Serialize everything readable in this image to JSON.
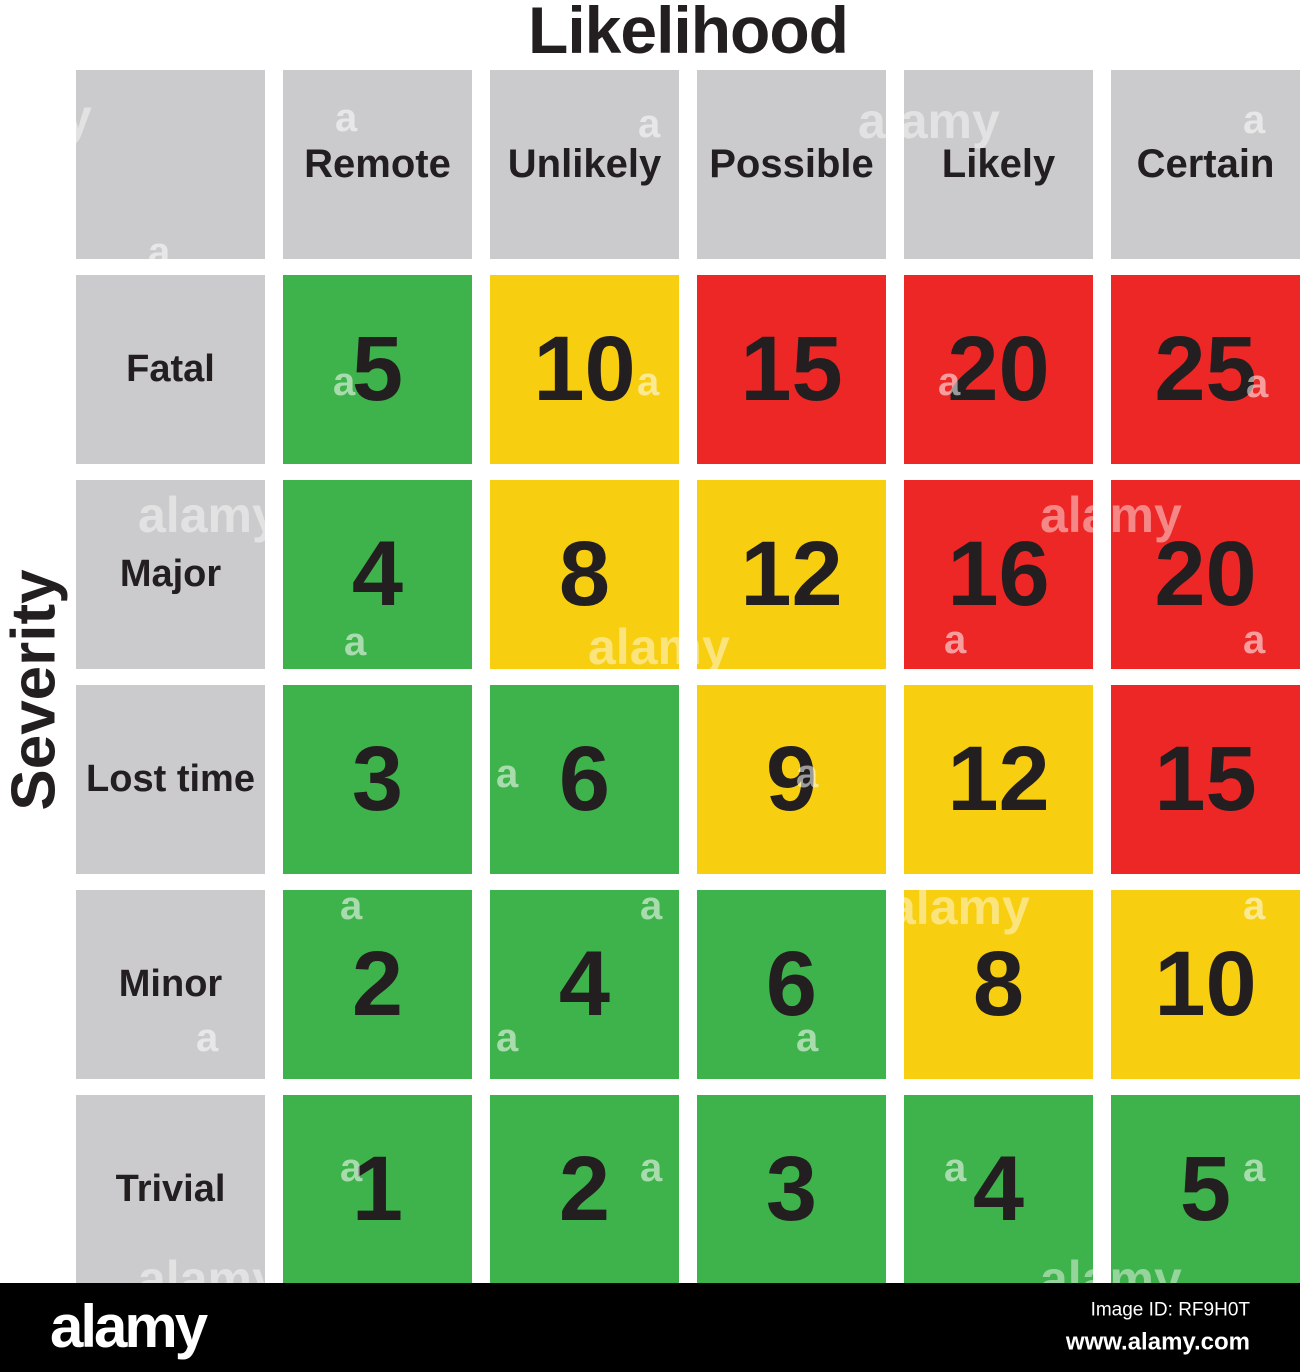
{
  "title": "Likelihood",
  "y_axis_label": "Severity",
  "matrix": {
    "columns": [
      "Remote",
      "Unlikely",
      "Possible",
      "Likely",
      "Certain"
    ],
    "rows": [
      {
        "label": "Fatal",
        "cells": [
          {
            "value": "5",
            "level": "green"
          },
          {
            "value": "10",
            "level": "yellow"
          },
          {
            "value": "15",
            "level": "red"
          },
          {
            "value": "20",
            "level": "red"
          },
          {
            "value": "25",
            "level": "red"
          }
        ]
      },
      {
        "label": "Major",
        "cells": [
          {
            "value": "4",
            "level": "green"
          },
          {
            "value": "8",
            "level": "yellow"
          },
          {
            "value": "12",
            "level": "yellow"
          },
          {
            "value": "16",
            "level": "red"
          },
          {
            "value": "20",
            "level": "red"
          }
        ]
      },
      {
        "label": "Lost time",
        "cells": [
          {
            "value": "3",
            "level": "green"
          },
          {
            "value": "6",
            "level": "green"
          },
          {
            "value": "9",
            "level": "yellow"
          },
          {
            "value": "12",
            "level": "yellow"
          },
          {
            "value": "15",
            "level": "red"
          }
        ]
      },
      {
        "label": "Minor",
        "cells": [
          {
            "value": "2",
            "level": "green"
          },
          {
            "value": "4",
            "level": "green"
          },
          {
            "value": "6",
            "level": "green"
          },
          {
            "value": "8",
            "level": "yellow"
          },
          {
            "value": "10",
            "level": "yellow"
          }
        ]
      },
      {
        "label": "Trivial",
        "cells": [
          {
            "value": "1",
            "level": "green"
          },
          {
            "value": "2",
            "level": "green"
          },
          {
            "value": "3",
            "level": "green"
          },
          {
            "value": "4",
            "level": "green"
          },
          {
            "value": "5",
            "level": "green"
          }
        ]
      }
    ]
  },
  "colors": {
    "green": "#3EB24B",
    "yellow": "#F7CE10",
    "red": "#ED2626",
    "gray": "#CBCBCD",
    "text": "#231F20",
    "footer_bg": "#000000"
  },
  "watermark": {
    "word": "alamy",
    "letter": "a"
  },
  "footer": {
    "brand": "alamy",
    "image_id": "Image ID: RF9H0T",
    "url": "www.alamy.com"
  },
  "chart_data": {
    "type": "heatmap",
    "title": "Likelihood",
    "xlabel": "Likelihood",
    "ylabel": "Severity",
    "x_categories": [
      "Remote",
      "Unlikely",
      "Possible",
      "Likely",
      "Certain"
    ],
    "y_categories": [
      "Fatal",
      "Major",
      "Lost time",
      "Minor",
      "Trivial"
    ],
    "values": [
      [
        5,
        10,
        15,
        20,
        25
      ],
      [
        4,
        8,
        12,
        16,
        20
      ],
      [
        3,
        6,
        9,
        12,
        15
      ],
      [
        2,
        4,
        6,
        8,
        10
      ],
      [
        1,
        2,
        3,
        4,
        5
      ]
    ],
    "cell_colors": [
      [
        "green",
        "yellow",
        "red",
        "red",
        "red"
      ],
      [
        "green",
        "yellow",
        "yellow",
        "red",
        "red"
      ],
      [
        "green",
        "green",
        "yellow",
        "yellow",
        "red"
      ],
      [
        "green",
        "green",
        "green",
        "yellow",
        "yellow"
      ],
      [
        "green",
        "green",
        "green",
        "green",
        "green"
      ]
    ],
    "value_range": [
      1,
      25
    ],
    "legend": "none",
    "grid": "white gaps between square cells"
  }
}
